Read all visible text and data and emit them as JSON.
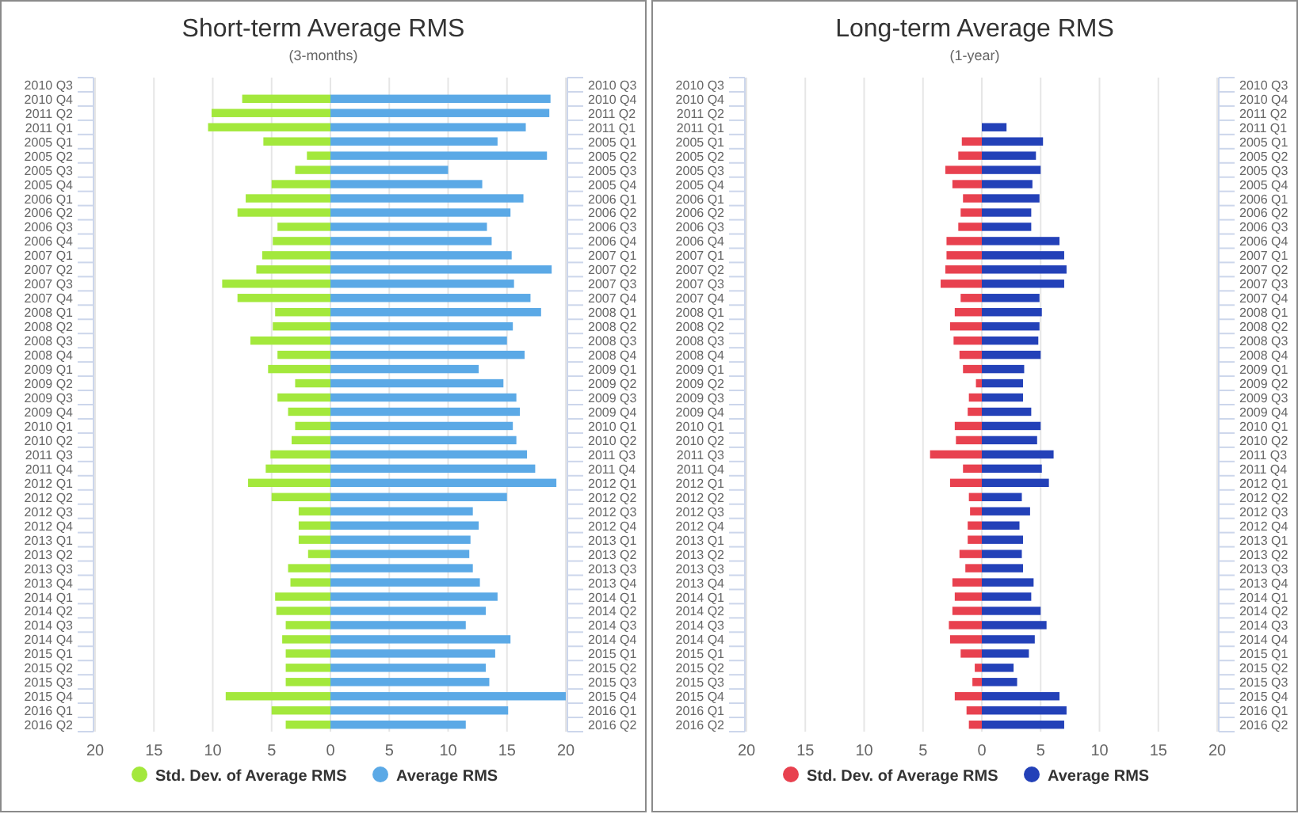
{
  "chart_data": [
    {
      "type": "bar",
      "orientation": "horizontal",
      "stacked": true,
      "title": "Short-term Average RMS",
      "subtitle": "(3-months)",
      "categories": [
        "2010 Q3",
        "2010 Q4",
        "2011 Q2",
        "2011 Q1",
        "2005 Q1",
        "2005 Q2",
        "2005 Q3",
        "2005 Q4",
        "2006 Q1",
        "2006 Q2",
        "2006 Q3",
        "2006 Q4",
        "2007 Q1",
        "2007 Q2",
        "2007 Q3",
        "2007 Q4",
        "2008 Q1",
        "2008 Q2",
        "2008 Q3",
        "2008 Q4",
        "2009 Q1",
        "2009 Q2",
        "2009 Q3",
        "2009 Q4",
        "2010 Q1",
        "2010 Q2",
        "2011 Q3",
        "2011 Q4",
        "2012 Q1",
        "2012 Q2",
        "2012 Q3",
        "2012 Q4",
        "2013 Q1",
        "2013 Q2",
        "2013 Q3",
        "2013 Q4",
        "2014 Q1",
        "2014 Q2",
        "2014 Q3",
        "2014 Q4",
        "2015 Q1",
        "2015 Q2",
        "2015 Q3",
        "2015 Q4",
        "2016 Q1",
        "2016 Q2"
      ],
      "series": [
        {
          "name": "Std. Dev. of Average RMS",
          "color": "#a3e83c",
          "values": [
            null,
            -7.5,
            -10.1,
            -10.4,
            -5.7,
            -2.0,
            -3.0,
            -5.0,
            -7.2,
            -7.9,
            -4.5,
            -4.9,
            -5.8,
            -6.3,
            -9.2,
            -7.9,
            -4.7,
            -4.9,
            -6.8,
            -4.5,
            -5.3,
            -3.0,
            -4.5,
            -3.6,
            -3.0,
            -3.3,
            -5.1,
            -5.5,
            -7.0,
            -5.0,
            -2.7,
            -2.7,
            -2.7,
            -1.9,
            -3.6,
            -3.4,
            -4.7,
            -4.6,
            -3.8,
            -4.1,
            -3.8,
            -3.8,
            -3.8,
            -8.9,
            -5.0,
            -3.8
          ]
        },
        {
          "name": "Average RMS",
          "color": "#5ba9e6",
          "values": [
            null,
            18.7,
            18.6,
            16.6,
            14.2,
            18.4,
            10.0,
            12.9,
            16.4,
            15.3,
            13.3,
            13.7,
            15.4,
            18.8,
            15.6,
            17.0,
            17.9,
            15.5,
            15.0,
            16.5,
            12.6,
            14.7,
            15.8,
            16.1,
            15.5,
            15.8,
            16.7,
            17.4,
            19.2,
            15.0,
            12.1,
            12.6,
            11.9,
            11.8,
            12.1,
            12.7,
            14.2,
            13.2,
            11.5,
            15.3,
            14.0,
            13.2,
            13.5,
            20.0,
            15.1,
            11.5
          ]
        }
      ],
      "xlim": [
        -20,
        20
      ],
      "xticks": [
        {
          "value": -20,
          "label": "20"
        },
        {
          "value": -15,
          "label": "15"
        },
        {
          "value": -10,
          "label": "10"
        },
        {
          "value": -5,
          "label": "5"
        },
        0,
        5,
        10,
        15,
        20
      ],
      "grid": "x",
      "legend": "bottom"
    },
    {
      "type": "bar",
      "orientation": "horizontal",
      "stacked": true,
      "title": "Long-term Average RMS",
      "subtitle": "(1-year)",
      "categories": [
        "2010 Q3",
        "2010 Q4",
        "2011 Q2",
        "2011 Q1",
        "2005 Q1",
        "2005 Q2",
        "2005 Q3",
        "2005 Q4",
        "2006 Q1",
        "2006 Q2",
        "2006 Q3",
        "2006 Q4",
        "2007 Q1",
        "2007 Q2",
        "2007 Q3",
        "2007 Q4",
        "2008 Q1",
        "2008 Q2",
        "2008 Q3",
        "2008 Q4",
        "2009 Q1",
        "2009 Q2",
        "2009 Q3",
        "2009 Q4",
        "2010 Q1",
        "2010 Q2",
        "2011 Q3",
        "2011 Q4",
        "2012 Q1",
        "2012 Q2",
        "2012 Q3",
        "2012 Q4",
        "2013 Q1",
        "2013 Q2",
        "2013 Q3",
        "2013 Q4",
        "2014 Q1",
        "2014 Q2",
        "2014 Q3",
        "2014 Q4",
        "2015 Q1",
        "2015 Q2",
        "2015 Q3",
        "2015 Q4",
        "2016 Q1",
        "2016 Q2"
      ],
      "series": [
        {
          "name": "Std. Dev. of Average RMS",
          "color": "#e8414f",
          "values": [
            null,
            null,
            null,
            null,
            -1.7,
            -2.0,
            -3.1,
            -2.5,
            -1.6,
            -1.8,
            -2.0,
            -3.0,
            -3.0,
            -3.1,
            -3.5,
            -1.8,
            -2.3,
            -2.7,
            -2.4,
            -1.9,
            -1.6,
            -0.5,
            -1.1,
            -1.2,
            -2.3,
            -2.2,
            -4.4,
            -1.6,
            -2.7,
            -1.1,
            -1.0,
            -1.2,
            -1.2,
            -1.9,
            -1.4,
            -2.5,
            -2.3,
            -2.5,
            -2.8,
            -2.7,
            -1.8,
            -0.6,
            -0.8,
            -2.3,
            -1.3,
            -1.1
          ]
        },
        {
          "name": "Average RMS",
          "color": "#2341b8",
          "values": [
            null,
            null,
            null,
            2.1,
            5.2,
            4.6,
            5.0,
            4.3,
            4.9,
            4.2,
            4.2,
            6.6,
            7.0,
            7.2,
            7.0,
            4.9,
            5.1,
            4.9,
            4.8,
            5.0,
            3.6,
            3.5,
            3.5,
            4.2,
            5.0,
            4.7,
            6.1,
            5.1,
            5.7,
            3.4,
            4.1,
            3.2,
            3.5,
            3.4,
            3.5,
            4.4,
            4.2,
            5.0,
            5.5,
            4.5,
            4.0,
            2.7,
            3.0,
            6.6,
            7.2,
            7.0
          ]
        }
      ],
      "xlim": [
        -20,
        20
      ],
      "xticks": [
        {
          "value": -20,
          "label": "20"
        },
        {
          "value": -15,
          "label": "15"
        },
        {
          "value": -10,
          "label": "10"
        },
        {
          "value": -5,
          "label": "5"
        },
        0,
        5,
        10,
        15,
        20
      ],
      "grid": "x",
      "legend": "bottom"
    }
  ]
}
